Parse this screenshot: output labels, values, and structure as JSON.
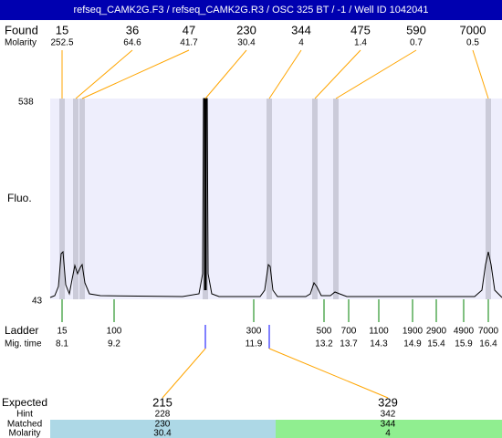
{
  "header": {
    "title": "refseq_CAMK2G.F3 / refseq_CAMK2G.R3 / OSC 325 BT  / -1  / Well ID 1042041"
  },
  "labels": {
    "found": "Found",
    "molarity": "Molarity",
    "fluo": "Fluo.",
    "y_max": "538",
    "y_min": "43",
    "ladder": "Ladder",
    "mig_time": "Mig. time",
    "expected": "Expected",
    "hint": "Hint",
    "matched": "Matched",
    "molarity_row": "Molarity"
  },
  "found": [
    {
      "size": "15",
      "molarity": "252.5"
    },
    {
      "size": "36",
      "molarity": "64.6"
    },
    {
      "size": "47",
      "molarity": "41.7"
    },
    {
      "size": "230",
      "molarity": "30.4"
    },
    {
      "size": "344",
      "molarity": "4"
    },
    {
      "size": "475",
      "molarity": "1.4"
    },
    {
      "size": "590",
      "molarity": "0.7"
    },
    {
      "size": "7000",
      "molarity": "0.5"
    }
  ],
  "ladder": [
    {
      "size": "15",
      "mig_time": "8.1"
    },
    {
      "size": "100",
      "mig_time": "9.2"
    },
    {
      "size": "300",
      "mig_time": "11.9"
    },
    {
      "size": "500",
      "mig_time": "13.2"
    },
    {
      "size": "700",
      "mig_time": "13.7"
    },
    {
      "size": "1100",
      "mig_time": "14.3"
    },
    {
      "size": "1900",
      "mig_time": "14.9"
    },
    {
      "size": "2900",
      "mig_time": "15.4"
    },
    {
      "size": "4900",
      "mig_time": "15.9"
    },
    {
      "size": "7000",
      "mig_time": "16.4"
    }
  ],
  "expected": [
    {
      "size": "215",
      "hint": "228",
      "matched": "230",
      "molarity": "30.4"
    },
    {
      "size": "329",
      "hint": "342",
      "matched": "344",
      "molarity": "4"
    }
  ]
}
